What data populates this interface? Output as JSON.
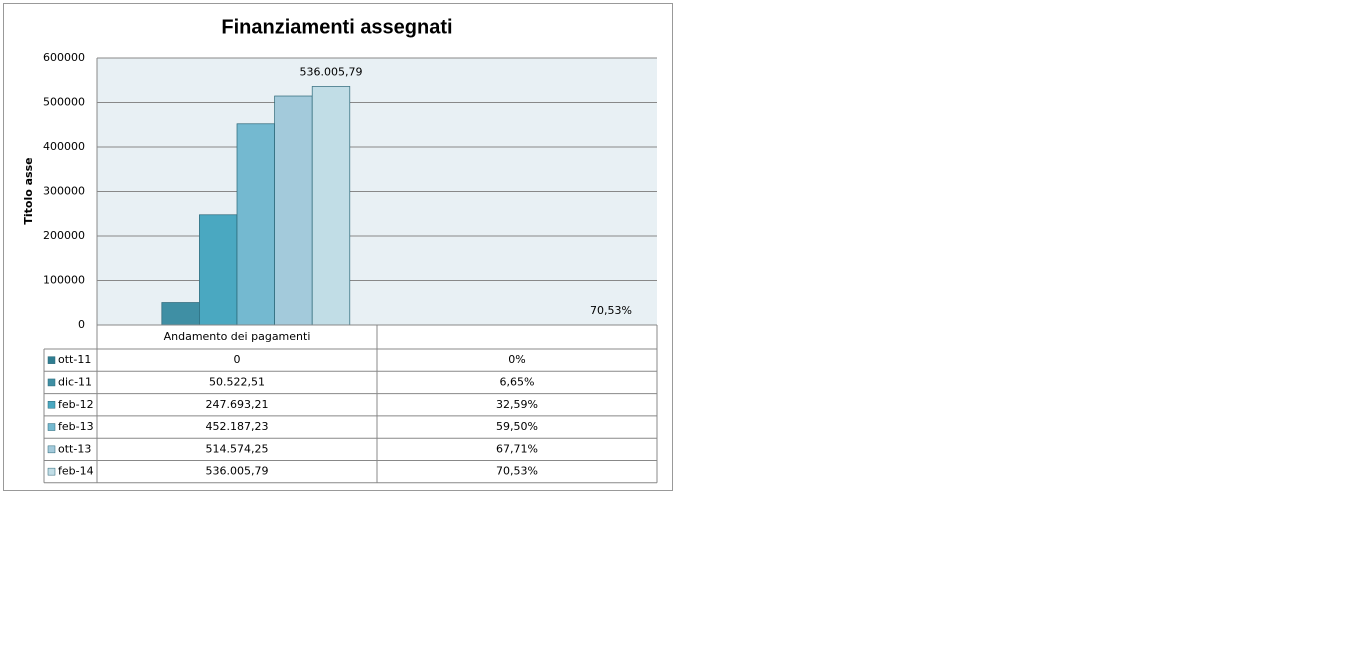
{
  "chart_data": {
    "type": "bar",
    "title": "Finanziamenti assegnati",
    "y_label": "Titolo asse",
    "categories": [
      "Andamento dei pagamenti",
      null
    ],
    "ylim": [
      0,
      600000
    ],
    "yticks": [
      0,
      100000,
      200000,
      300000,
      400000,
      500000,
      600000
    ],
    "grid": true,
    "data_table": true,
    "series": [
      {
        "name": "ott-11",
        "color": "#2f7d91",
        "values": [
          0,
          0
        ],
        "value_labels": [
          "0",
          "0%"
        ]
      },
      {
        "name": "dic-11",
        "color": "#3f8fa4",
        "values": [
          50522.51,
          6.65
        ],
        "value_labels": [
          "50.522,51",
          "6,65%"
        ]
      },
      {
        "name": "feb-12",
        "color": "#4aa8c1",
        "values": [
          247693.21,
          32.59
        ],
        "value_labels": [
          "247.693,21",
          "32,59%"
        ]
      },
      {
        "name": "feb-13",
        "color": "#74b9d0",
        "values": [
          452187.23,
          59.5
        ],
        "value_labels": [
          "452.187,23",
          "59,50%"
        ]
      },
      {
        "name": "ott-13",
        "color": "#a3cadb",
        "values": [
          514574.25,
          67.71
        ],
        "value_labels": [
          "514.574,25",
          "67,71%"
        ]
      },
      {
        "name": "feb-14",
        "color": "#c1dde6",
        "values": [
          536005.79,
          70.53
        ],
        "value_labels": [
          "536.005,79",
          "70,53%"
        ],
        "show_labels": true
      }
    ]
  }
}
